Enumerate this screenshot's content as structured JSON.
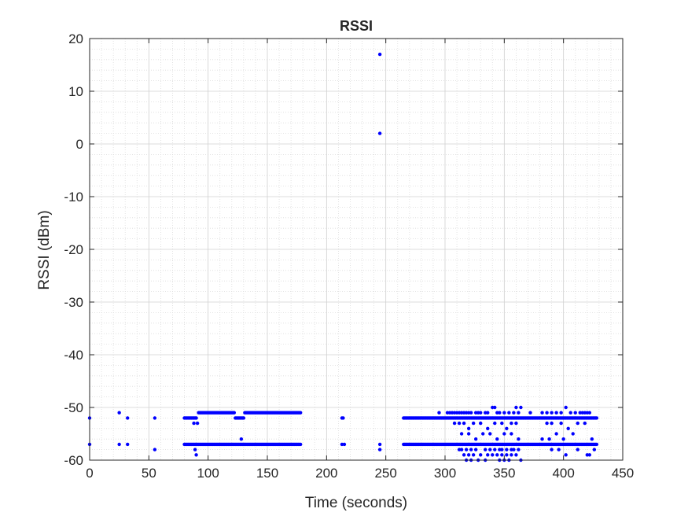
{
  "chart_data": {
    "type": "scatter",
    "title": "RSSI",
    "xlabel": "Time (seconds)",
    "ylabel": "RSSI (dBm)",
    "xlim": [
      0,
      450
    ],
    "ylim": [
      -60,
      20
    ],
    "xticks": [
      "0",
      "50",
      "100",
      "150",
      "200",
      "250",
      "300",
      "350",
      "400",
      "450"
    ],
    "yticks": [
      "20",
      "10",
      "0",
      "-10",
      "-20",
      "-30",
      "-40",
      "-50",
      "-60"
    ],
    "grid": true,
    "minor_grid": true,
    "marker_color": "#0000ff",
    "marker": "dot",
    "clusters": [
      {
        "x_start": 80,
        "x_end": 178,
        "step": 1,
        "y": -57
      },
      {
        "x_start": 80,
        "x_end": 90,
        "step": 1,
        "y": -52
      },
      {
        "x_start": 92,
        "x_end": 122,
        "step": 1,
        "y": -51
      },
      {
        "x_start": 123,
        "x_end": 130,
        "step": 1,
        "y": -52
      },
      {
        "x_start": 131,
        "x_end": 178,
        "step": 1,
        "y": -51
      },
      {
        "x_start": 265,
        "x_end": 428,
        "step": 1,
        "y": -57
      },
      {
        "x_start": 265,
        "x_end": 428,
        "step": 1,
        "y": -52
      }
    ],
    "points": [
      {
        "x": 0,
        "y": -52
      },
      {
        "x": 0,
        "y": -57
      },
      {
        "x": 25,
        "y": -51
      },
      {
        "x": 25,
        "y": -57
      },
      {
        "x": 32,
        "y": -52
      },
      {
        "x": 32,
        "y": -57
      },
      {
        "x": 55,
        "y": -52
      },
      {
        "x": 55,
        "y": -58
      },
      {
        "x": 88,
        "y": -53
      },
      {
        "x": 89,
        "y": -58
      },
      {
        "x": 90,
        "y": -59
      },
      {
        "x": 91,
        "y": -53
      },
      {
        "x": 128,
        "y": -56
      },
      {
        "x": 213,
        "y": -52
      },
      {
        "x": 213,
        "y": -57
      },
      {
        "x": 214,
        "y": -52
      },
      {
        "x": 215,
        "y": -57
      },
      {
        "x": 245,
        "y": 17
      },
      {
        "x": 245,
        "y": 2
      },
      {
        "x": 245,
        "y": -57
      },
      {
        "x": 245,
        "y": -58
      },
      {
        "x": 295,
        "y": -51
      },
      {
        "x": 302,
        "y": -51
      },
      {
        "x": 304,
        "y": -51
      },
      {
        "x": 306,
        "y": -51
      },
      {
        "x": 308,
        "y": -51
      },
      {
        "x": 310,
        "y": -51
      },
      {
        "x": 312,
        "y": -51
      },
      {
        "x": 314,
        "y": -51
      },
      {
        "x": 316,
        "y": -51
      },
      {
        "x": 318,
        "y": -51
      },
      {
        "x": 320,
        "y": -51
      },
      {
        "x": 322,
        "y": -51
      },
      {
        "x": 326,
        "y": -51
      },
      {
        "x": 328,
        "y": -51
      },
      {
        "x": 330,
        "y": -51
      },
      {
        "x": 334,
        "y": -51
      },
      {
        "x": 336,
        "y": -51
      },
      {
        "x": 340,
        "y": -50
      },
      {
        "x": 342,
        "y": -50
      },
      {
        "x": 344,
        "y": -51
      },
      {
        "x": 346,
        "y": -51
      },
      {
        "x": 350,
        "y": -51
      },
      {
        "x": 354,
        "y": -51
      },
      {
        "x": 358,
        "y": -51
      },
      {
        "x": 360,
        "y": -50
      },
      {
        "x": 362,
        "y": -51
      },
      {
        "x": 364,
        "y": -50
      },
      {
        "x": 308,
        "y": -53
      },
      {
        "x": 312,
        "y": -53
      },
      {
        "x": 316,
        "y": -53
      },
      {
        "x": 320,
        "y": -54
      },
      {
        "x": 324,
        "y": -53
      },
      {
        "x": 330,
        "y": -53
      },
      {
        "x": 336,
        "y": -54
      },
      {
        "x": 342,
        "y": -53
      },
      {
        "x": 348,
        "y": -53
      },
      {
        "x": 352,
        "y": -54
      },
      {
        "x": 356,
        "y": -53
      },
      {
        "x": 360,
        "y": -53
      },
      {
        "x": 314,
        "y": -55
      },
      {
        "x": 320,
        "y": -55
      },
      {
        "x": 326,
        "y": -56
      },
      {
        "x": 332,
        "y": -55
      },
      {
        "x": 338,
        "y": -55
      },
      {
        "x": 344,
        "y": -56
      },
      {
        "x": 350,
        "y": -55
      },
      {
        "x": 356,
        "y": -55
      },
      {
        "x": 362,
        "y": -56
      },
      {
        "x": 312,
        "y": -58
      },
      {
        "x": 314,
        "y": -58
      },
      {
        "x": 318,
        "y": -58
      },
      {
        "x": 322,
        "y": -58
      },
      {
        "x": 326,
        "y": -58
      },
      {
        "x": 330,
        "y": -59
      },
      {
        "x": 334,
        "y": -58
      },
      {
        "x": 338,
        "y": -58
      },
      {
        "x": 342,
        "y": -58
      },
      {
        "x": 346,
        "y": -58
      },
      {
        "x": 348,
        "y": -58
      },
      {
        "x": 352,
        "y": -58
      },
      {
        "x": 356,
        "y": -58
      },
      {
        "x": 358,
        "y": -58
      },
      {
        "x": 362,
        "y": -58
      },
      {
        "x": 316,
        "y": -59
      },
      {
        "x": 320,
        "y": -59
      },
      {
        "x": 324,
        "y": -59
      },
      {
        "x": 328,
        "y": -60
      },
      {
        "x": 334,
        "y": -60
      },
      {
        "x": 336,
        "y": -59
      },
      {
        "x": 340,
        "y": -59
      },
      {
        "x": 344,
        "y": -59
      },
      {
        "x": 346,
        "y": -60
      },
      {
        "x": 348,
        "y": -59
      },
      {
        "x": 350,
        "y": -60
      },
      {
        "x": 352,
        "y": -59
      },
      {
        "x": 354,
        "y": -60
      },
      {
        "x": 356,
        "y": -59
      },
      {
        "x": 360,
        "y": -59
      },
      {
        "x": 364,
        "y": -60
      },
      {
        "x": 318,
        "y": -60
      },
      {
        "x": 322,
        "y": -60
      },
      {
        "x": 372,
        "y": -51
      },
      {
        "x": 382,
        "y": -51
      },
      {
        "x": 386,
        "y": -51
      },
      {
        "x": 390,
        "y": -51
      },
      {
        "x": 394,
        "y": -51
      },
      {
        "x": 398,
        "y": -51
      },
      {
        "x": 402,
        "y": -50
      },
      {
        "x": 406,
        "y": -51
      },
      {
        "x": 410,
        "y": -51
      },
      {
        "x": 414,
        "y": -51
      },
      {
        "x": 416,
        "y": -51
      },
      {
        "x": 418,
        "y": -51
      },
      {
        "x": 420,
        "y": -51
      },
      {
        "x": 422,
        "y": -51
      },
      {
        "x": 386,
        "y": -53
      },
      {
        "x": 390,
        "y": -53
      },
      {
        "x": 398,
        "y": -53
      },
      {
        "x": 404,
        "y": -54
      },
      {
        "x": 412,
        "y": -53
      },
      {
        "x": 418,
        "y": -53
      },
      {
        "x": 382,
        "y": -56
      },
      {
        "x": 388,
        "y": -56
      },
      {
        "x": 394,
        "y": -55
      },
      {
        "x": 400,
        "y": -56
      },
      {
        "x": 408,
        "y": -55
      },
      {
        "x": 424,
        "y": -56
      },
      {
        "x": 390,
        "y": -58
      },
      {
        "x": 396,
        "y": -58
      },
      {
        "x": 402,
        "y": -59
      },
      {
        "x": 412,
        "y": -58
      },
      {
        "x": 420,
        "y": -59
      },
      {
        "x": 422,
        "y": -59
      },
      {
        "x": 426,
        "y": -58
      }
    ]
  }
}
